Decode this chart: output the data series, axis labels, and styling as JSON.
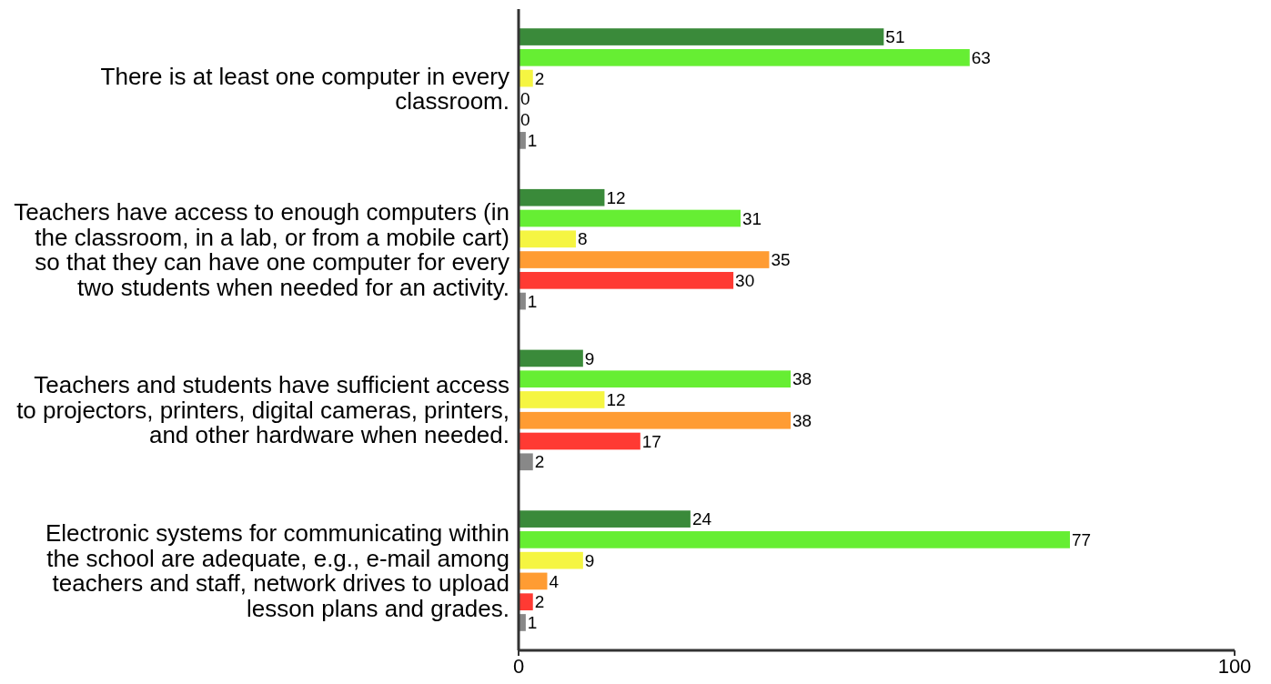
{
  "chart_data": {
    "type": "bar",
    "orientation": "horizontal",
    "categories": [
      "There is at least one computer in every classroom.",
      "Teachers have access to enough computers (in the classroom, in a lab, or from a mobile cart) so that they can have one computer for every two students when needed for an activity.",
      "Teachers and students have sufficient access to projectors, printers, digital cameras, printers, and other hardware when needed.",
      "Electronic systems for communicating within the school are adequate, e.g., e-mail among teachers and staff, network drives to upload lesson plans and grades."
    ],
    "series": [
      {
        "color": "#3a8a3a",
        "values": [
          51,
          12,
          9,
          24
        ]
      },
      {
        "color": "#66ee33",
        "values": [
          63,
          31,
          38,
          77
        ]
      },
      {
        "color": "#f5f542",
        "values": [
          2,
          8,
          12,
          9
        ]
      },
      {
        "color": "#ff9c33",
        "values": [
          0,
          35,
          38,
          4
        ]
      },
      {
        "color": "#ff3a33",
        "values": [
          0,
          30,
          17,
          2
        ]
      },
      {
        "color": "#888888",
        "values": [
          1,
          1,
          2,
          1
        ]
      }
    ],
    "xlim": [
      0,
      100
    ],
    "xticks": [
      0,
      100
    ],
    "data_labels": true,
    "grid": false
  }
}
